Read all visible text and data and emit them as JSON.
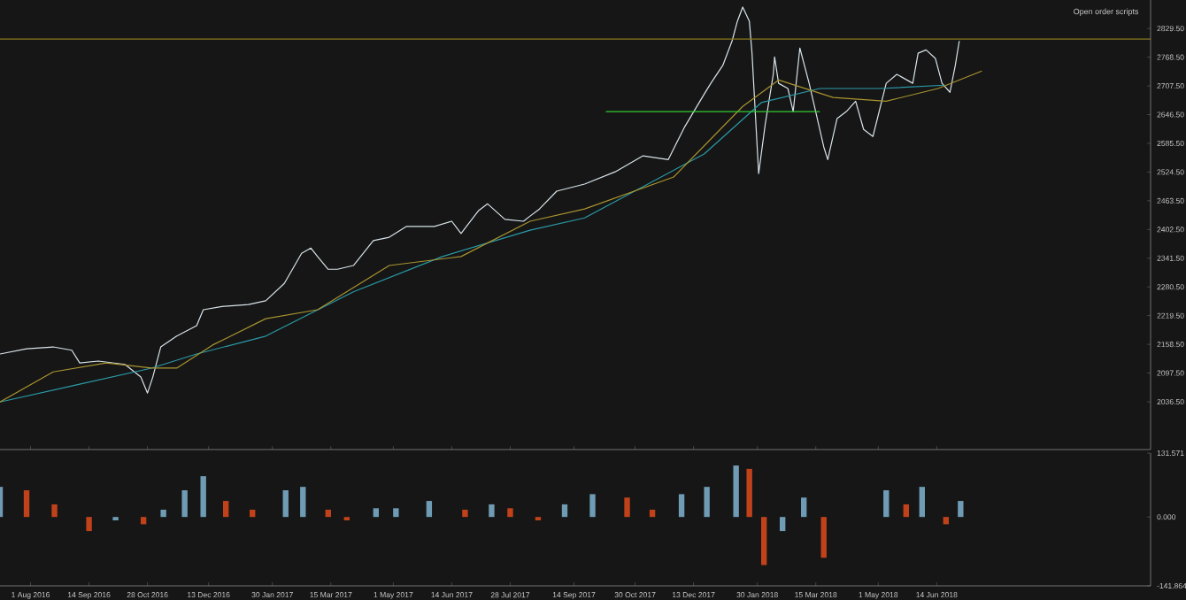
{
  "chart_data": [
    {
      "type": "line",
      "series": [
        {
          "color": "#d8e4ea",
          "x": [
            "2016-07-09",
            "2016-07-29",
            "2016-08-18",
            "2016-09-01",
            "2016-09-07",
            "2016-09-21",
            "2016-10-11",
            "2016-10-23",
            "2016-10-28",
            "2016-11-01",
            "2016-11-07",
            "2016-11-19",
            "2016-12-04",
            "2016-12-09",
            "2016-12-23",
            "2017-01-12",
            "2017-01-25",
            "2017-02-08",
            "2017-02-21",
            "2017-02-28",
            "2017-03-05",
            "2017-03-13",
            "2017-03-20",
            "2017-04-01",
            "2017-04-16",
            "2017-04-28",
            "2017-05-11",
            "2017-06-01",
            "2017-06-14",
            "2017-06-21",
            "2017-07-04",
            "2017-07-11",
            "2017-07-24",
            "2017-08-07",
            "2017-08-12",
            "2017-08-19",
            "2017-09-01",
            "2017-09-22",
            "2017-10-15",
            "2017-11-05",
            "2017-11-24",
            "2017-12-06",
            "2017-12-21",
            "2017-12-26",
            "2018-01-04",
            "2018-01-11",
            "2018-01-15",
            "2018-01-19",
            "2018-01-24",
            "2018-01-26",
            "2018-01-31",
            "2018-02-05",
            "2018-02-11",
            "2018-02-12",
            "2018-02-15",
            "2018-02-22",
            "2018-02-26",
            "2018-03-03",
            "2018-03-10",
            "2018-03-14",
            "2018-03-21",
            "2018-03-24",
            "2018-03-31",
            "2018-04-07",
            "2018-04-14",
            "2018-04-20",
            "2018-04-27",
            "2018-05-07",
            "2018-05-15",
            "2018-05-27",
            "2018-05-31",
            "2018-06-06",
            "2018-06-13",
            "2018-06-18",
            "2018-06-24",
            "2018-06-28",
            "2018-07-01"
          ],
          "values": [
            2138,
            2149,
            2153,
            2146,
            2119,
            2123,
            2116,
            2089,
            2055,
            2089,
            2153,
            2176,
            2198,
            2232,
            2239,
            2243,
            2251,
            2288,
            2352,
            2363,
            2345,
            2318,
            2318,
            2326,
            2379,
            2386,
            2409,
            2409,
            2420,
            2394,
            2442,
            2457,
            2424,
            2420,
            2431,
            2446,
            2484,
            2499,
            2525,
            2559,
            2551,
            2619,
            2690,
            2713,
            2751,
            2803,
            2845,
            2875,
            2845,
            2777,
            2521,
            2627,
            2732,
            2769,
            2713,
            2702,
            2653,
            2788,
            2713,
            2664,
            2578,
            2551,
            2638,
            2653,
            2675,
            2615,
            2600,
            2713,
            2732,
            2713,
            2777,
            2784,
            2766,
            2713,
            2694,
            2751,
            2803
          ]
        },
        {
          "color": "#2a9ba8",
          "x": [
            "2016-07-09",
            "2016-09-01",
            "2016-10-31",
            "2016-12-04",
            "2017-01-25",
            "2017-04-01",
            "2017-06-07",
            "2017-08-12",
            "2017-09-22",
            "2017-12-21",
            "2018-02-02",
            "2018-03-18",
            "2018-05-03",
            "2018-06-20"
          ],
          "values": [
            2036,
            2070,
            2108,
            2138,
            2176,
            2270,
            2345,
            2401,
            2427,
            2563,
            2672,
            2702,
            2702,
            2709
          ]
        },
        {
          "color": "#a89430",
          "x": [
            "2016-07-09",
            "2016-08-18",
            "2016-09-27",
            "2016-10-31",
            "2016-11-19",
            "2016-12-16",
            "2017-01-25",
            "2017-03-05",
            "2017-04-28",
            "2017-06-21",
            "2017-08-12",
            "2017-09-22",
            "2017-11-28",
            "2018-01-19",
            "2018-02-15",
            "2018-03-28",
            "2018-05-07",
            "2018-06-15",
            "2018-07-18"
          ],
          "values": [
            2036,
            2100,
            2119,
            2108,
            2108,
            2157,
            2213,
            2232,
            2326,
            2345,
            2420,
            2446,
            2514,
            2664,
            2720,
            2683,
            2675,
            2702,
            2739
          ]
        },
        {
          "color": "#33cc33",
          "x": [
            "2017-10-08",
            "2018-03-18"
          ],
          "values": [
            2653,
            2653
          ]
        }
      ],
      "xlim": [
        "2016-07-09",
        "2018-11-22"
      ],
      "ylim": [
        1935,
        2890
      ],
      "xticks": [
        {
          "value": "2016-08-01",
          "label": null
        },
        {
          "value": "2016-09-14",
          "label": null
        },
        {
          "value": "2016-10-28",
          "label": null
        },
        {
          "value": "2016-12-13",
          "label": null
        },
        {
          "value": "2017-01-30",
          "label": null
        },
        {
          "value": "2017-03-15",
          "label": null
        },
        {
          "value": "2017-05-01",
          "label": null
        },
        {
          "value": "2017-06-14",
          "label": null
        },
        {
          "value": "2017-07-28",
          "label": null
        },
        {
          "value": "2017-09-14",
          "label": null
        },
        {
          "value": "2017-10-30",
          "label": null
        },
        {
          "value": "2017-12-13",
          "label": null
        },
        {
          "value": "2018-01-30",
          "label": null
        },
        {
          "value": "2018-03-15",
          "label": null
        },
        {
          "value": "2018-05-01",
          "label": null
        },
        {
          "value": "2018-06-14",
          "label": null
        }
      ],
      "yticks": [
        {
          "value": 2036.5,
          "label": "2036.50"
        },
        {
          "value": 2097.5,
          "label": "2097.50"
        },
        {
          "value": 2158.5,
          "label": "2158.50"
        },
        {
          "value": 2219.5,
          "label": "2219.50"
        },
        {
          "value": 2280.5,
          "label": "2280.50"
        },
        {
          "value": 2341.5,
          "label": "2341.50"
        },
        {
          "value": 2402.5,
          "label": "2402.50"
        },
        {
          "value": 2463.5,
          "label": "2463.50"
        },
        {
          "value": 2524.5,
          "label": "2524.50"
        },
        {
          "value": 2585.5,
          "label": "2585.50"
        },
        {
          "value": 2646.5,
          "label": "2646.50"
        },
        {
          "value": 2707.5,
          "label": "2707.50"
        },
        {
          "value": 2768.5,
          "label": "2768.50"
        },
        {
          "value": 2829.5,
          "label": "2829.50"
        }
      ],
      "tick_labels": "y",
      "ref_lines": [
        {
          "axis": "y",
          "value": 2807,
          "color": "#8b7a1e"
        }
      ],
      "annotations": [
        "Open order scripts"
      ]
    },
    {
      "type": "bar",
      "x": [
        "2016-07-09",
        "2016-07-29",
        "2016-08-19",
        "2016-09-04",
        "2016-09-14",
        "2016-10-04",
        "2016-10-25",
        "2016-11-09",
        "2016-11-25",
        "2016-12-09",
        "2016-12-26",
        "2017-01-15",
        "2017-02-09",
        "2017-02-22",
        "2017-03-13",
        "2017-03-27",
        "2017-04-18",
        "2017-05-03",
        "2017-05-28",
        "2017-06-24",
        "2017-07-14",
        "2017-07-28",
        "2017-08-18",
        "2017-09-07",
        "2017-09-28",
        "2017-10-24",
        "2017-11-12",
        "2017-12-04",
        "2017-12-23",
        "2018-01-14",
        "2018-01-24",
        "2018-02-04",
        "2018-02-18",
        "2018-03-06",
        "2018-03-21",
        "2018-04-06",
        "2018-05-07",
        "2018-05-22",
        "2018-06-03",
        "2018-06-21",
        "2018-07-02"
      ],
      "values": [
        62,
        55,
        26,
        0,
        -29,
        -7,
        -15,
        15,
        55,
        84,
        33,
        15,
        55,
        62,
        15,
        -7,
        18,
        18,
        33,
        15,
        26,
        18,
        -7,
        26,
        47,
        40,
        15,
        47,
        62,
        106,
        99,
        -99,
        -29,
        40,
        -84,
        0,
        55,
        26,
        62,
        -15,
        33
      ],
      "colors": [
        "#6f9cb4",
        "#c1421a",
        "#c1421a",
        "#c1421a",
        "#c1421a",
        "#6f9cb4",
        "#c1421a",
        "#6f9cb4",
        "#6f9cb4",
        "#6f9cb4",
        "#c1421a",
        "#c1421a",
        "#6f9cb4",
        "#6f9cb4",
        "#c1421a",
        "#c1421a",
        "#6f9cb4",
        "#6f9cb4",
        "#6f9cb4",
        "#c1421a",
        "#6f9cb4",
        "#c1421a",
        "#c1421a",
        "#6f9cb4",
        "#6f9cb4",
        "#c1421a",
        "#c1421a",
        "#6f9cb4",
        "#6f9cb4",
        "#6f9cb4",
        "#c1421a",
        "#c1421a",
        "#6f9cb4",
        "#6f9cb4",
        "#c1421a",
        "#6f9cb4",
        "#6f9cb4",
        "#c1421a",
        "#6f9cb4",
        "#c1421a",
        "#6f9cb4"
      ],
      "xlim": [
        "2016-07-09",
        "2018-11-22"
      ],
      "ylim": [
        -141.864,
        131.571
      ],
      "xticks": [
        {
          "value": "2016-08-01",
          "label": "1 Aug 2016"
        },
        {
          "value": "2016-09-14",
          "label": "14 Sep 2016"
        },
        {
          "value": "2016-10-28",
          "label": "28 Oct 2016"
        },
        {
          "value": "2016-12-13",
          "label": "13 Dec 2016"
        },
        {
          "value": "2017-01-30",
          "label": "30 Jan 2017"
        },
        {
          "value": "2017-03-15",
          "label": "15 Mar 2017"
        },
        {
          "value": "2017-05-01",
          "label": "1 May 2017"
        },
        {
          "value": "2017-06-14",
          "label": "14 Jun 2017"
        },
        {
          "value": "2017-07-28",
          "label": "28 Jul 2017"
        },
        {
          "value": "2017-09-14",
          "label": "14 Sep 2017"
        },
        {
          "value": "2017-10-30",
          "label": "30 Oct 2017"
        },
        {
          "value": "2017-12-13",
          "label": "13 Dec 2017"
        },
        {
          "value": "2018-01-30",
          "label": "30 Jan 2018"
        },
        {
          "value": "2018-03-15",
          "label": "15 Mar 2018"
        },
        {
          "value": "2018-05-01",
          "label": "1 May 2018"
        },
        {
          "value": "2018-06-14",
          "label": "14 Jun 2018"
        }
      ],
      "yticks": [
        {
          "value": -141.864,
          "label": "-141.864"
        },
        {
          "value": 0,
          "label": "0.000"
        },
        {
          "value": 131.571,
          "label": "131.571"
        }
      ]
    }
  ]
}
